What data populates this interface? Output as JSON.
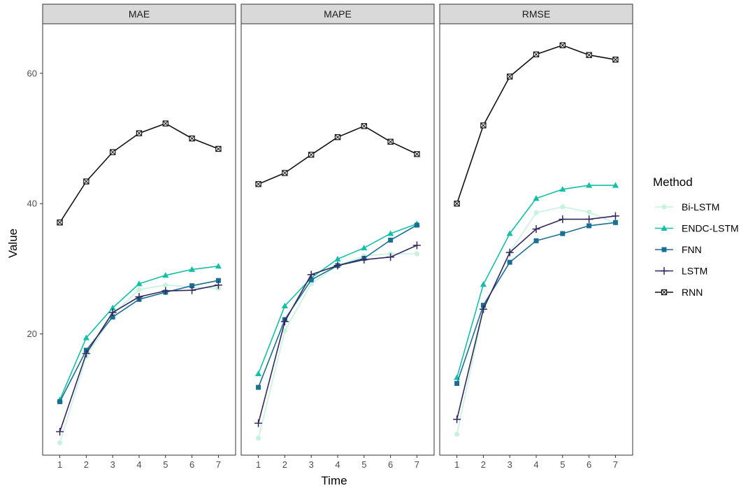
{
  "chart_data": {
    "type": "line",
    "x": [
      1,
      2,
      3,
      4,
      5,
      6,
      7
    ],
    "xlabel": "Time",
    "ylabel": "Value",
    "ylim": [
      1.4,
      67.6
    ],
    "yticks": [
      20,
      40,
      60
    ],
    "grid": false,
    "legend": {
      "title": "Method",
      "position": "right"
    },
    "panels": [
      {
        "title": "MAE",
        "series": [
          {
            "name": "Bi-LSTM",
            "values": [
              3.3,
              16.5,
              23.0,
              26.8,
              27.5,
              27.2,
              27.0
            ]
          },
          {
            "name": "ENDC-LSTM",
            "values": [
              9.9,
              19.4,
              24.0,
              27.7,
              29.0,
              29.9,
              30.4
            ]
          },
          {
            "name": "FNN",
            "values": [
              9.6,
              17.5,
              22.6,
              25.3,
              26.4,
              27.4,
              28.2
            ]
          },
          {
            "name": "LSTM",
            "values": [
              5.0,
              17.0,
              23.3,
              25.7,
              26.6,
              26.7,
              27.5
            ]
          },
          {
            "name": "RNN",
            "values": [
              37.1,
              43.4,
              47.9,
              50.8,
              52.3,
              50.0,
              48.4
            ]
          }
        ]
      },
      {
        "title": "MAPE",
        "series": [
          {
            "name": "Bi-LSTM",
            "values": [
              4.0,
              20.5,
              27.7,
              30.5,
              32.0,
              32.3,
              32.3
            ]
          },
          {
            "name": "ENDC-LSTM",
            "values": [
              13.9,
              24.3,
              28.6,
              31.5,
              33.2,
              35.4,
              36.9
            ]
          },
          {
            "name": "FNN",
            "values": [
              11.8,
              22.2,
              28.3,
              30.5,
              31.6,
              34.4,
              36.7
            ]
          },
          {
            "name": "LSTM",
            "values": [
              6.3,
              21.9,
              29.1,
              30.5,
              31.4,
              31.8,
              33.6
            ]
          },
          {
            "name": "RNN",
            "values": [
              43.0,
              44.7,
              47.5,
              50.2,
              51.9,
              49.5,
              47.6
            ]
          }
        ]
      },
      {
        "title": "RMSE",
        "series": [
          {
            "name": "Bi-LSTM",
            "values": [
              4.6,
              23.7,
              32.5,
              38.6,
              39.5,
              38.7,
              37.0
            ]
          },
          {
            "name": "ENDC-LSTM",
            "values": [
              13.3,
              27.6,
              35.4,
              40.8,
              42.2,
              42.8,
              42.8
            ]
          },
          {
            "name": "FNN",
            "values": [
              12.4,
              24.4,
              31.0,
              34.3,
              35.4,
              36.6,
              37.1
            ]
          },
          {
            "name": "LSTM",
            "values": [
              6.9,
              23.8,
              32.5,
              36.1,
              37.6,
              37.6,
              38.1
            ]
          },
          {
            "name": "RNN",
            "values": [
              40.0,
              52.0,
              59.5,
              62.9,
              64.3,
              62.8,
              62.1
            ]
          }
        ]
      }
    ],
    "colors": {
      "Bi-LSTM": "#c7f2dd",
      "ENDC-LSTM": "#14bfa6",
      "FNN": "#1a6f93",
      "LSTM": "#33285e",
      "RNN": "#111111"
    },
    "markers": {
      "Bi-LSTM": "circle",
      "ENDC-LSTM": "triangle",
      "FNN": "square",
      "LSTM": "plus",
      "RNN": "square-cross"
    }
  }
}
